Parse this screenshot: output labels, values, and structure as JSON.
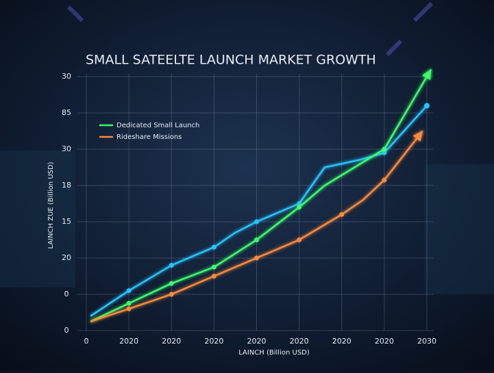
{
  "chart_data": {
    "type": "line",
    "title": "SMALL SATEELTE LAUNCH MARKET GROWTH",
    "xlabel": "LAINCH (Billion USD)",
    "ylabel": "LAINCH ZUE (Billion USD)",
    "xlim": [
      0,
      8
    ],
    "ylim": [
      0,
      7
    ],
    "xticks": [
      0,
      {
        "value": 1,
        "label": "2020"
      },
      {
        "value": 2,
        "label": "2020"
      },
      {
        "value": 3,
        "label": "2020"
      },
      {
        "value": 4,
        "label": "2020"
      },
      {
        "value": 5,
        "label": "2020"
      },
      {
        "value": 6,
        "label": "2020"
      },
      {
        "value": 7,
        "label": "2020"
      },
      {
        "value": 8,
        "label": "2030"
      }
    ],
    "yticks": [
      {
        "value": 0,
        "label": "0"
      },
      {
        "value": 1,
        "label": "0"
      },
      {
        "value": 2,
        "label": "20"
      },
      {
        "value": 3,
        "label": "15"
      },
      {
        "value": 4,
        "label": "18"
      },
      {
        "value": 5,
        "label": "30"
      },
      {
        "value": 6,
        "label": "85"
      },
      {
        "value": 7,
        "label": "30"
      }
    ],
    "grid": true,
    "series": [
      {
        "color": "#27c3ff",
        "marker_end": "dot",
        "x": [
          0.1,
          1,
          2,
          3,
          3.5,
          4,
          5,
          5.6,
          6.4,
          7,
          8
        ],
        "values": [
          0.4,
          1.1,
          1.8,
          2.3,
          2.7,
          3.0,
          3.5,
          4.5,
          4.7,
          4.9,
          6.2
        ]
      },
      {
        "name": "Dedicated Small Launch",
        "color": "#3dff6a",
        "marker_end": "arrow",
        "x": [
          0.1,
          1,
          2,
          3,
          4,
          5,
          5.6,
          7,
          8.1
        ],
        "values": [
          0.25,
          0.75,
          1.3,
          1.75,
          2.5,
          3.4,
          4.0,
          5.0,
          7.2
        ]
      },
      {
        "name": "Rideshare Missions",
        "color": "#ff8a3a",
        "marker_end": "arrow",
        "x": [
          0.1,
          1,
          2,
          3,
          4,
          5,
          6,
          6.5,
          7,
          7.9
        ],
        "values": [
          0.25,
          0.6,
          1.0,
          1.5,
          2.0,
          2.5,
          3.2,
          3.6,
          4.15,
          5.5
        ]
      }
    ]
  }
}
